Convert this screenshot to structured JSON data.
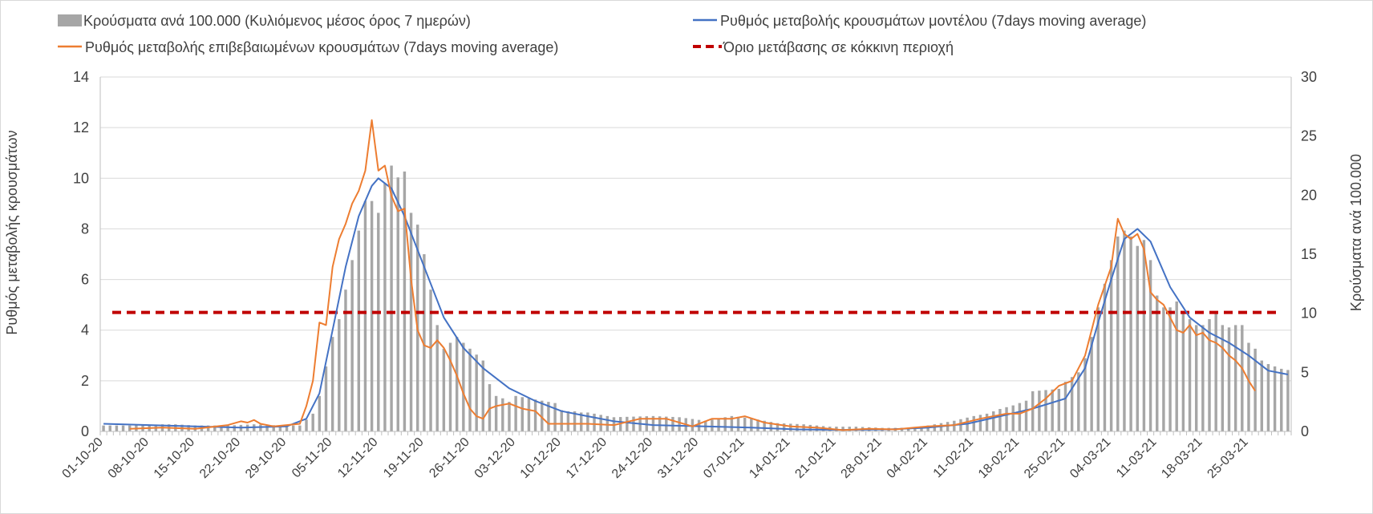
{
  "chart_data": {
    "type": "bar+line",
    "title": "",
    "ylabel_left": "Ρυθμός μεταβολής κρουσμάτων",
    "ylabel_right": "Κρούσματα ανά 100.000",
    "ylim_left": [
      0,
      14
    ],
    "yticks_left": [
      0,
      2,
      4,
      6,
      8,
      10,
      12,
      14
    ],
    "ylim_right": [
      0,
      30
    ],
    "yticks_right": [
      0,
      5,
      10,
      15,
      20,
      25,
      30
    ],
    "x_start": "2020-10-01",
    "x_end": "2021-03-31",
    "x_tick_labels": [
      "01-10-20",
      "08-10-20",
      "15-10-20",
      "22-10-20",
      "29-10-20",
      "05-11-20",
      "12-11-20",
      "19-11-20",
      "26-11-20",
      "03-12-20",
      "10-12-20",
      "17-12-20",
      "24-12-20",
      "31-12-20",
      "07-01-21",
      "14-01-21",
      "21-01-21",
      "28-01-21",
      "04-02-21",
      "11-02-21",
      "18-02-21",
      "25-02-21",
      "04-03-21",
      "11-03-21",
      "18-03-21",
      "25-03-21"
    ],
    "grid": true,
    "legend_position": "top",
    "colors": {
      "bars": "#a6a6a6",
      "model": "#4472c4",
      "confirmed": "#ed7d31",
      "threshold": "#c00000"
    },
    "series": [
      {
        "name": "Κρούσματα ανά 100.000 (Κυλιόμενος μέσος όρος 7 ημερών)",
        "type": "bar",
        "axis": "right",
        "points": [
          [
            "2020-10-01",
            0.5
          ],
          [
            "2020-10-05",
            0.5
          ],
          [
            "2020-10-10",
            0.6
          ],
          [
            "2020-10-12",
            0.6
          ],
          [
            "2020-10-15",
            0.5
          ],
          [
            "2020-10-20",
            0.5
          ],
          [
            "2020-10-24",
            0.6
          ],
          [
            "2020-10-28",
            0.5
          ],
          [
            "2020-10-31",
            0.5
          ],
          [
            "2020-11-02",
            1.5
          ],
          [
            "2020-11-03",
            3.0
          ],
          [
            "2020-11-04",
            5.5
          ],
          [
            "2020-11-05",
            8.0
          ],
          [
            "2020-11-06",
            9.5
          ],
          [
            "2020-11-07",
            12.0
          ],
          [
            "2020-11-08",
            14.5
          ],
          [
            "2020-11-09",
            17.0
          ],
          [
            "2020-11-10",
            19.5
          ],
          [
            "2020-11-11",
            19.5
          ],
          [
            "2020-11-12",
            18.5
          ],
          [
            "2020-11-13",
            21.0
          ],
          [
            "2020-11-14",
            22.5
          ],
          [
            "2020-11-15",
            21.5
          ],
          [
            "2020-11-16",
            22.0
          ],
          [
            "2020-11-17",
            18.5
          ],
          [
            "2020-11-18",
            17.5
          ],
          [
            "2020-11-19",
            15.0
          ],
          [
            "2020-11-20",
            12.0
          ],
          [
            "2020-11-21",
            9.0
          ],
          [
            "2020-11-22",
            7.0
          ],
          [
            "2020-11-23",
            7.5
          ],
          [
            "2020-11-24",
            8.0
          ],
          [
            "2020-11-25",
            7.5
          ],
          [
            "2020-11-26",
            7.0
          ],
          [
            "2020-11-27",
            6.5
          ],
          [
            "2020-11-28",
            6.0
          ],
          [
            "2020-11-29",
            4.0
          ],
          [
            "2020-11-30",
            3.0
          ],
          [
            "2020-12-01",
            2.8
          ],
          [
            "2020-12-02",
            2.5
          ],
          [
            "2020-12-03",
            3.0
          ],
          [
            "2020-12-04",
            2.9
          ],
          [
            "2020-12-05",
            2.8
          ],
          [
            "2020-12-06",
            2.7
          ],
          [
            "2020-12-07",
            2.6
          ],
          [
            "2020-12-08",
            2.5
          ],
          [
            "2020-12-09",
            2.4
          ],
          [
            "2020-12-10",
            1.8
          ],
          [
            "2020-12-11",
            1.7
          ],
          [
            "2020-12-12",
            1.7
          ],
          [
            "2020-12-13",
            1.6
          ],
          [
            "2020-12-14",
            1.6
          ],
          [
            "2020-12-15",
            1.5
          ],
          [
            "2020-12-16",
            1.4
          ],
          [
            "2020-12-17",
            1.3
          ],
          [
            "2020-12-18",
            1.2
          ],
          [
            "2020-12-24",
            1.3
          ],
          [
            "2020-12-28",
            1.2
          ],
          [
            "2021-01-01",
            0.9
          ],
          [
            "2021-01-05",
            1.3
          ],
          [
            "2021-01-08",
            1.1
          ],
          [
            "2021-01-12",
            0.7
          ],
          [
            "2021-01-16",
            0.6
          ],
          [
            "2021-01-20",
            0.4
          ],
          [
            "2021-01-24",
            0.4
          ],
          [
            "2021-01-28",
            0.3
          ],
          [
            "2021-02-01",
            0.3
          ],
          [
            "2021-02-04",
            0.5
          ],
          [
            "2021-02-08",
            0.9
          ],
          [
            "2021-02-11",
            1.3
          ],
          [
            "2021-02-13",
            1.5
          ],
          [
            "2021-02-15",
            1.9
          ],
          [
            "2021-02-17",
            2.2
          ],
          [
            "2021-02-19",
            2.6
          ],
          [
            "2021-02-20",
            3.4
          ],
          [
            "2021-02-22",
            3.5
          ],
          [
            "2021-02-24",
            3.6
          ],
          [
            "2021-02-25",
            4.2
          ],
          [
            "2021-02-27",
            5.0
          ],
          [
            "2021-02-28",
            6.2
          ],
          [
            "2021-03-01",
            8.0
          ],
          [
            "2021-03-02",
            10.5
          ],
          [
            "2021-03-03",
            12.5
          ],
          [
            "2021-03-04",
            14.5
          ],
          [
            "2021-03-05",
            16.5
          ],
          [
            "2021-03-06",
            17.0
          ],
          [
            "2021-03-07",
            16.5
          ],
          [
            "2021-03-08",
            15.7
          ],
          [
            "2021-03-09",
            16.2
          ],
          [
            "2021-03-10",
            14.5
          ],
          [
            "2021-03-11",
            11.5
          ],
          [
            "2021-03-12",
            10.5
          ],
          [
            "2021-03-13",
            10.5
          ],
          [
            "2021-03-14",
            11.0
          ],
          [
            "2021-03-15",
            10.0
          ],
          [
            "2021-03-16",
            9.5
          ],
          [
            "2021-03-17",
            9.0
          ],
          [
            "2021-03-18",
            9.0
          ],
          [
            "2021-03-19",
            9.5
          ],
          [
            "2021-03-20",
            10.0
          ],
          [
            "2021-03-21",
            9.0
          ],
          [
            "2021-03-22",
            8.8
          ],
          [
            "2021-03-23",
            9.0
          ],
          [
            "2021-03-24",
            9.0
          ],
          [
            "2021-03-25",
            7.5
          ],
          [
            "2021-03-26",
            7.0
          ],
          [
            "2021-03-27",
            6.0
          ],
          [
            "2021-03-28",
            5.7
          ],
          [
            "2021-03-29",
            5.5
          ],
          [
            "2021-03-30",
            5.3
          ],
          [
            "2021-03-31",
            5.2
          ]
        ]
      },
      {
        "name": "Ρυθμός μεταβολής κρουσμάτων μοντέλου (7days moving average)",
        "type": "line",
        "axis": "left",
        "points": [
          [
            "2020-10-01",
            0.3
          ],
          [
            "2020-10-08",
            0.25
          ],
          [
            "2020-10-15",
            0.2
          ],
          [
            "2020-10-22",
            0.15
          ],
          [
            "2020-10-29",
            0.2
          ],
          [
            "2020-11-01",
            0.5
          ],
          [
            "2020-11-03",
            1.5
          ],
          [
            "2020-11-05",
            4.0
          ],
          [
            "2020-11-07",
            6.5
          ],
          [
            "2020-11-09",
            8.5
          ],
          [
            "2020-11-11",
            9.7
          ],
          [
            "2020-11-12",
            10.0
          ],
          [
            "2020-11-14",
            9.6
          ],
          [
            "2020-11-16",
            8.5
          ],
          [
            "2020-11-19",
            6.5
          ],
          [
            "2020-11-22",
            4.5
          ],
          [
            "2020-11-25",
            3.3
          ],
          [
            "2020-11-28",
            2.5
          ],
          [
            "2020-12-02",
            1.7
          ],
          [
            "2020-12-06",
            1.2
          ],
          [
            "2020-12-10",
            0.8
          ],
          [
            "2020-12-14",
            0.6
          ],
          [
            "2020-12-18",
            0.4
          ],
          [
            "2020-12-24",
            0.25
          ],
          [
            "2021-01-01",
            0.2
          ],
          [
            "2021-01-08",
            0.15
          ],
          [
            "2021-01-15",
            0.08
          ],
          [
            "2021-01-22",
            0.06
          ],
          [
            "2021-01-29",
            0.08
          ],
          [
            "2021-02-04",
            0.15
          ],
          [
            "2021-02-10",
            0.3
          ],
          [
            "2021-02-15",
            0.6
          ],
          [
            "2021-02-20",
            0.9
          ],
          [
            "2021-02-25",
            1.3
          ],
          [
            "2021-02-28",
            2.5
          ],
          [
            "2021-03-02",
            4.3
          ],
          [
            "2021-03-04",
            6.0
          ],
          [
            "2021-03-06",
            7.6
          ],
          [
            "2021-03-08",
            8.0
          ],
          [
            "2021-03-10",
            7.5
          ],
          [
            "2021-03-13",
            5.7
          ],
          [
            "2021-03-16",
            4.5
          ],
          [
            "2021-03-19",
            3.9
          ],
          [
            "2021-03-22",
            3.5
          ],
          [
            "2021-03-25",
            3.0
          ],
          [
            "2021-03-28",
            2.4
          ],
          [
            "2021-03-31",
            2.25
          ]
        ]
      },
      {
        "name": "Ρυθμός μεταβολής επιβεβαιωμένων κρουσμάτων (7days moving average)",
        "type": "line",
        "axis": "left",
        "points": [
          [
            "2020-10-05",
            0.1
          ],
          [
            "2020-10-10",
            0.15
          ],
          [
            "2020-10-15",
            0.1
          ],
          [
            "2020-10-20",
            0.25
          ],
          [
            "2020-10-22",
            0.4
          ],
          [
            "2020-10-23",
            0.35
          ],
          [
            "2020-10-24",
            0.45
          ],
          [
            "2020-10-25",
            0.3
          ],
          [
            "2020-10-27",
            0.2
          ],
          [
            "2020-10-31",
            0.3
          ],
          [
            "2020-11-01",
            1.0
          ],
          [
            "2020-11-02",
            2.0
          ],
          [
            "2020-11-03",
            4.3
          ],
          [
            "2020-11-04",
            4.2
          ],
          [
            "2020-11-05",
            6.5
          ],
          [
            "2020-11-06",
            7.6
          ],
          [
            "2020-11-07",
            8.2
          ],
          [
            "2020-11-08",
            9.0
          ],
          [
            "2020-11-09",
            9.5
          ],
          [
            "2020-11-10",
            10.3
          ],
          [
            "2020-11-11",
            12.3
          ],
          [
            "2020-11-12",
            10.3
          ],
          [
            "2020-11-13",
            10.5
          ],
          [
            "2020-11-14",
            9.3
          ],
          [
            "2020-11-15",
            8.7
          ],
          [
            "2020-11-16",
            8.8
          ],
          [
            "2020-11-17",
            6.0
          ],
          [
            "2020-11-18",
            4.0
          ],
          [
            "2020-11-19",
            3.4
          ],
          [
            "2020-11-20",
            3.3
          ],
          [
            "2020-11-21",
            3.6
          ],
          [
            "2020-11-22",
            3.3
          ],
          [
            "2020-11-23",
            2.8
          ],
          [
            "2020-11-24",
            2.2
          ],
          [
            "2020-11-25",
            1.5
          ],
          [
            "2020-11-26",
            0.9
          ],
          [
            "2020-11-27",
            0.6
          ],
          [
            "2020-11-28",
            0.5
          ],
          [
            "2020-11-29",
            0.9
          ],
          [
            "2020-11-30",
            1.0
          ],
          [
            "2020-12-02",
            1.1
          ],
          [
            "2020-12-04",
            0.9
          ],
          [
            "2020-12-06",
            0.8
          ],
          [
            "2020-12-08",
            0.3
          ],
          [
            "2020-12-10",
            0.3
          ],
          [
            "2020-12-14",
            0.3
          ],
          [
            "2020-12-18",
            0.25
          ],
          [
            "2020-12-22",
            0.5
          ],
          [
            "2020-12-26",
            0.5
          ],
          [
            "2020-12-30",
            0.2
          ],
          [
            "2021-01-02",
            0.5
          ],
          [
            "2021-01-05",
            0.5
          ],
          [
            "2021-01-07",
            0.6
          ],
          [
            "2021-01-10",
            0.35
          ],
          [
            "2021-01-14",
            0.2
          ],
          [
            "2021-01-18",
            0.15
          ],
          [
            "2021-01-22",
            0.05
          ],
          [
            "2021-01-26",
            0.1
          ],
          [
            "2021-01-30",
            0.08
          ],
          [
            "2021-02-04",
            0.2
          ],
          [
            "2021-02-08",
            0.25
          ],
          [
            "2021-02-12",
            0.5
          ],
          [
            "2021-02-16",
            0.7
          ],
          [
            "2021-02-18",
            0.7
          ],
          [
            "2021-02-20",
            0.9
          ],
          [
            "2021-02-22",
            1.3
          ],
          [
            "2021-02-24",
            1.8
          ],
          [
            "2021-02-26",
            2.0
          ],
          [
            "2021-02-28",
            3.0
          ],
          [
            "2021-03-02",
            5.0
          ],
          [
            "2021-03-04",
            6.5
          ],
          [
            "2021-03-05",
            8.4
          ],
          [
            "2021-03-06",
            7.8
          ],
          [
            "2021-03-07",
            7.6
          ],
          [
            "2021-03-08",
            7.8
          ],
          [
            "2021-03-09",
            7.2
          ],
          [
            "2021-03-10",
            5.5
          ],
          [
            "2021-03-11",
            5.2
          ],
          [
            "2021-03-12",
            5.0
          ],
          [
            "2021-03-13",
            4.5
          ],
          [
            "2021-03-14",
            4.0
          ],
          [
            "2021-03-15",
            3.9
          ],
          [
            "2021-03-16",
            4.2
          ],
          [
            "2021-03-17",
            3.8
          ],
          [
            "2021-03-18",
            3.9
          ],
          [
            "2021-03-19",
            3.6
          ],
          [
            "2021-03-20",
            3.5
          ],
          [
            "2021-03-21",
            3.3
          ],
          [
            "2021-03-22",
            3.0
          ],
          [
            "2021-03-23",
            2.8
          ],
          [
            "2021-03-24",
            2.5
          ],
          [
            "2021-03-25",
            2.0
          ],
          [
            "2021-03-26",
            1.6
          ]
        ]
      },
      {
        "name": "Όριο μετάβασης σε κόκκινη περιοχή",
        "type": "line",
        "style": "dashed",
        "axis": "left",
        "value": 4.7
      }
    ]
  }
}
